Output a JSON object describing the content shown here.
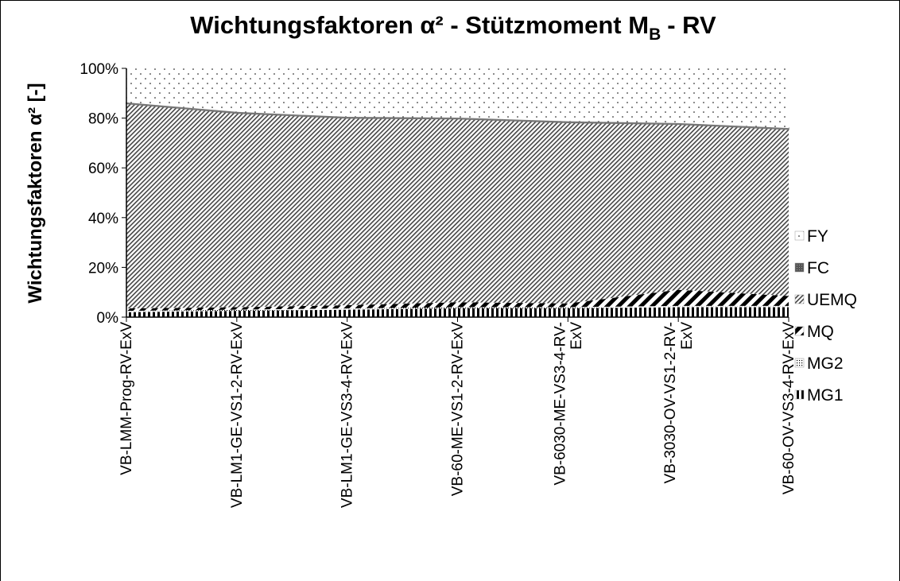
{
  "chart_data": {
    "type": "area",
    "title": "Wichtungsfaktoren α² - Stützmoment M",
    "title_subscript": "B",
    "title_end": "- RV",
    "y_label": "Wichtungsfaktoren α² [-]",
    "categories": [
      "VB-LMM-Prog-RV-ExV",
      "VB-LM1-GE-VS1-2-RV-ExV",
      "VB-LM1-GE-VS3-4-RV-ExV",
      "VB-60-ME-VS1-2-RV-ExV",
      "VB-6030-ME-VS3-4-RV-ExV",
      "VB-3030-OV-VS1-2-RV-ExV",
      "VB-60-OV-VS3-4-RV-ExV"
    ],
    "stacked": true,
    "series": [
      {
        "name": "MG1",
        "pattern": "vertical",
        "values": [
          2,
          2.5,
          3,
          3.5,
          3.5,
          4,
          4
        ]
      },
      {
        "name": "MG2",
        "pattern": "dense-dots",
        "values": [
          0.5,
          0.5,
          0.5,
          0.5,
          0.5,
          0.5,
          0.5
        ]
      },
      {
        "name": "MQ",
        "pattern": "thick-diagonal",
        "values": [
          1,
          1,
          1.3,
          2,
          1.5,
          6.5,
          4
        ]
      },
      {
        "name": "UEMQ",
        "pattern": "fine-diagonal",
        "values": [
          82.3,
          78,
          75.2,
          73.7,
          72.7,
          66.5,
          67
        ]
      },
      {
        "name": "FC",
        "pattern": "dark",
        "values": [
          0.5,
          0.5,
          0.5,
          0.5,
          0.5,
          0.5,
          0.5
        ]
      },
      {
        "name": "FY",
        "pattern": "dots",
        "values": [
          13.7,
          17.5,
          19.5,
          19.8,
          21.3,
          22,
          24
        ]
      }
    ],
    "ylim": [
      0,
      100
    ],
    "yticks": [
      {
        "value": 0,
        "label": "0%"
      },
      {
        "value": 20,
        "label": "20%"
      },
      {
        "value": 40,
        "label": "40%"
      },
      {
        "value": 60,
        "label": "60%"
      },
      {
        "value": 80,
        "label": "80%"
      },
      {
        "value": 100,
        "label": "100%"
      }
    ],
    "legend": "right"
  }
}
